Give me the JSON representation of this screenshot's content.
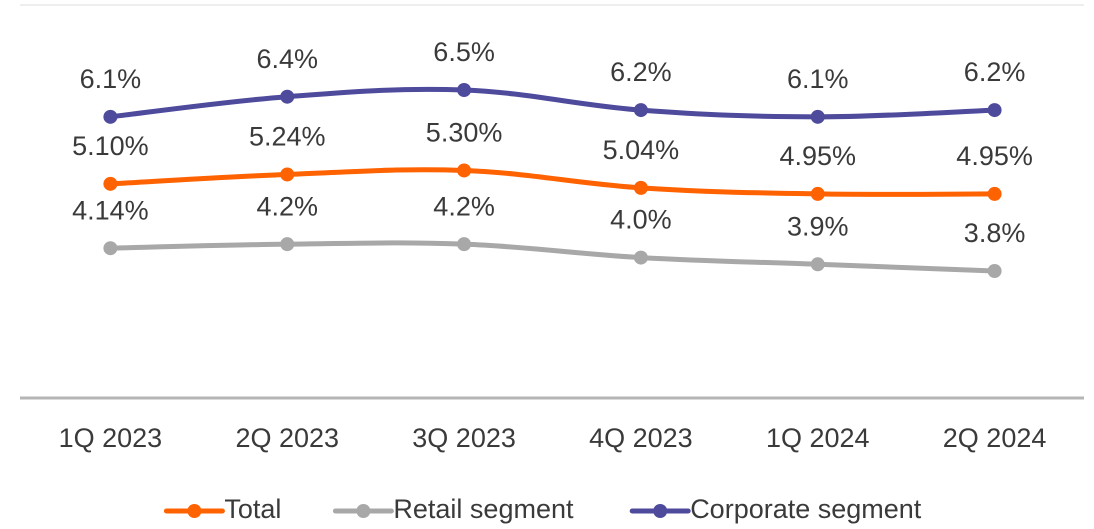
{
  "chart_data": {
    "type": "line",
    "categories": [
      "1Q 2023",
      "2Q 2023",
      "3Q 2023",
      "4Q 2023",
      "1Q 2024",
      "2Q 2024"
    ],
    "series": [
      {
        "name": "Total",
        "color": "#ff6200",
        "values": [
          5.1,
          5.24,
          5.3,
          5.04,
          4.95,
          4.95
        ],
        "value_labels": [
          "5.10%",
          "5.24%",
          "5.30%",
          "5.04%",
          "4.95%",
          "4.95%"
        ]
      },
      {
        "name": "Retail segment",
        "color": "#a8a8a8",
        "values": [
          4.14,
          4.2,
          4.2,
          4.0,
          3.9,
          3.8
        ],
        "value_labels": [
          "4.14%",
          "4.2%",
          "4.2%",
          "4.0%",
          "3.9%",
          "3.8%"
        ]
      },
      {
        "name": "Corporate segment",
        "color": "#4e4a9c",
        "values": [
          6.1,
          6.4,
          6.5,
          6.2,
          6.1,
          6.2
        ],
        "value_labels": [
          "6.1%",
          "6.4%",
          "6.5%",
          "6.2%",
          "6.1%",
          "6.2%"
        ]
      }
    ],
    "legend": "bottom"
  }
}
